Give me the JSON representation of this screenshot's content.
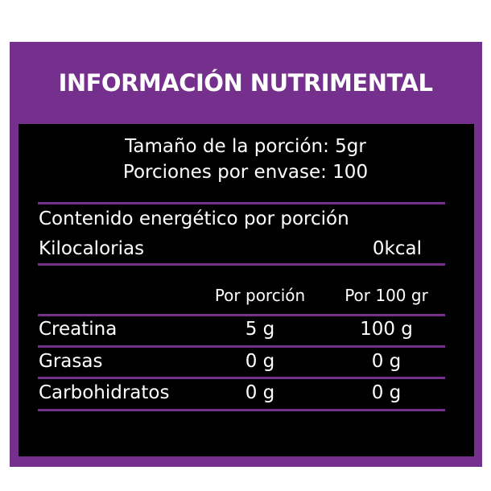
{
  "title": "INFORMACIÓN NUTRIMENTAL",
  "serving": {
    "size": "Tamaño de la porción: 5gr",
    "per_container": "Porciones por envase: 100"
  },
  "energy": {
    "heading": "Contenido energético por porción",
    "label": "Kilocalorias",
    "value": "0kcal"
  },
  "table": {
    "headers": [
      "",
      "Por porción",
      "Por 100 gr"
    ],
    "rows": [
      {
        "name": "Creatina",
        "per_serving": "5 g",
        "per_100": "100 g"
      },
      {
        "name": "Grasas",
        "per_serving": "0 g",
        "per_100": "0 g"
      },
      {
        "name": "Carbohidratos",
        "per_serving": "0 g",
        "per_100": "0 g"
      }
    ]
  },
  "colors": {
    "accent": "#75308e",
    "background": "#000000",
    "text": "#ffffff"
  }
}
